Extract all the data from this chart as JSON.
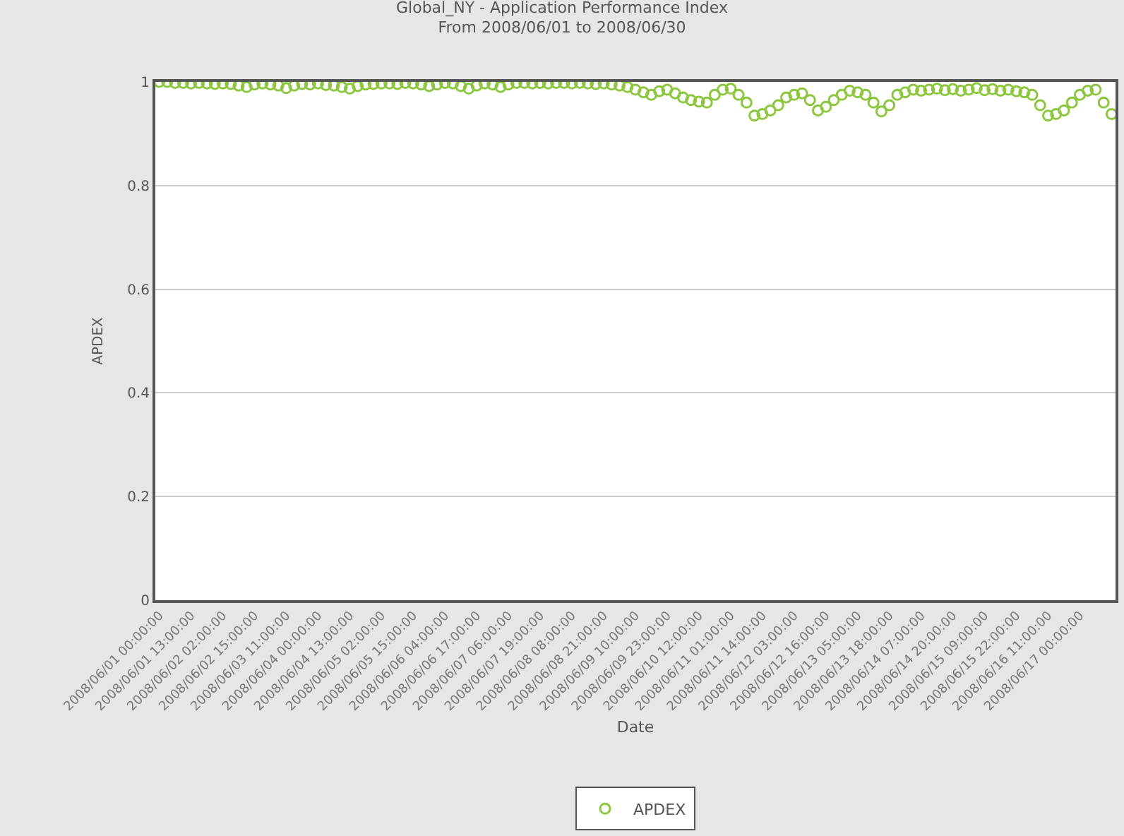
{
  "chart_data": {
    "type": "scatter",
    "title": "Global_NY - Application Performance Index",
    "subtitle": "From 2008/06/01 to 2008/06/30",
    "xlabel": "Date",
    "ylabel": "APDEX",
    "categories": [
      "2008/06/01 00:00:00",
      null,
      null,
      null,
      "2008/06/01 13:00:00",
      null,
      null,
      null,
      "2008/06/02 02:00:00",
      null,
      null,
      null,
      "2008/06/02 15:00:00",
      null,
      null,
      null,
      "2008/06/03 11:00:00",
      null,
      null,
      null,
      "2008/06/04 00:00:00",
      null,
      null,
      null,
      "2008/06/04 13:00:00",
      null,
      null,
      null,
      "2008/06/05 02:00:00",
      null,
      null,
      null,
      "2008/06/05 15:00:00",
      null,
      null,
      null,
      "2008/06/06 04:00:00",
      null,
      null,
      null,
      "2008/06/06 17:00:00",
      null,
      null,
      null,
      "2008/06/07 06:00:00",
      null,
      null,
      null,
      "2008/06/07 19:00:00",
      null,
      null,
      null,
      "2008/06/08 08:00:00",
      null,
      null,
      null,
      "2008/06/08 21:00:00",
      null,
      null,
      null,
      "2008/06/09 10:00:00",
      null,
      null,
      null,
      "2008/06/09 23:00:00",
      null,
      null,
      null,
      "2008/06/10 12:00:00",
      null,
      null,
      null,
      "2008/06/11 01:00:00",
      null,
      null,
      null,
      "2008/06/11 14:00:00",
      null,
      null,
      null,
      "2008/06/12 03:00:00",
      null,
      null,
      null,
      "2008/06/12 16:00:00",
      null,
      null,
      null,
      "2008/06/13 05:00:00",
      null,
      null,
      null,
      "2008/06/13 18:00:00",
      null,
      null,
      null,
      "2008/06/14 07:00:00",
      null,
      null,
      null,
      "2008/06/14 20:00:00",
      null,
      null,
      null,
      "2008/06/15 09:00:00",
      null,
      null,
      null,
      "2008/06/15 22:00:00",
      null,
      null,
      null,
      "2008/06/16 11:00:00",
      null,
      null,
      null,
      "2008/06/17 00:00:00",
      null,
      null,
      null,
      null
    ],
    "series": [
      {
        "name": "APDEX",
        "color": "#8dc63f",
        "values": [
          1,
          1,
          0.998,
          0.998,
          0.997,
          0.998,
          0.997,
          0.996,
          0.997,
          0.996,
          0.993,
          0.99,
          0.995,
          0.997,
          0.995,
          0.993,
          0.988,
          0.993,
          0.996,
          0.995,
          0.997,
          0.994,
          0.993,
          0.99,
          0.987,
          0.992,
          0.995,
          0.996,
          0.997,
          0.997,
          0.996,
          0.998,
          0.997,
          0.995,
          0.992,
          0.995,
          0.998,
          0.997,
          0.992,
          0.987,
          0.993,
          0.997,
          0.995,
          0.99,
          0.995,
          0.998,
          0.998,
          0.997,
          0.998,
          0.997,
          0.998,
          0.998,
          0.997,
          0.998,
          0.997,
          0.996,
          0.997,
          0.995,
          0.993,
          0.99,
          0.985,
          0.98,
          0.975,
          0.982,
          0.985,
          0.978,
          0.97,
          0.965,
          0.962,
          0.96,
          0.975,
          0.985,
          0.987,
          0.975,
          0.96,
          0.935,
          0.938,
          0.945,
          0.955,
          0.97,
          0.975,
          0.978,
          0.965,
          0.945,
          0.952,
          0.965,
          0.975,
          0.983,
          0.98,
          0.975,
          0.96,
          0.943,
          0.955,
          0.975,
          0.98,
          0.985,
          0.983,
          0.985,
          0.987,
          0.984,
          0.986,
          0.983,
          0.985,
          0.988,
          0.984,
          0.986,
          0.983,
          0.985,
          0.982,
          0.98,
          0.975,
          0.955,
          0.935,
          0.938,
          0.945,
          0.96,
          0.975,
          0.983,
          0.985,
          0.96,
          0.938
        ]
      }
    ],
    "ylim": [
      0,
      1
    ],
    "yticks": [
      0,
      0.2,
      0.4,
      0.6,
      0.8,
      1
    ],
    "grid": "y",
    "legend": "bottom",
    "marker": "circle"
  }
}
